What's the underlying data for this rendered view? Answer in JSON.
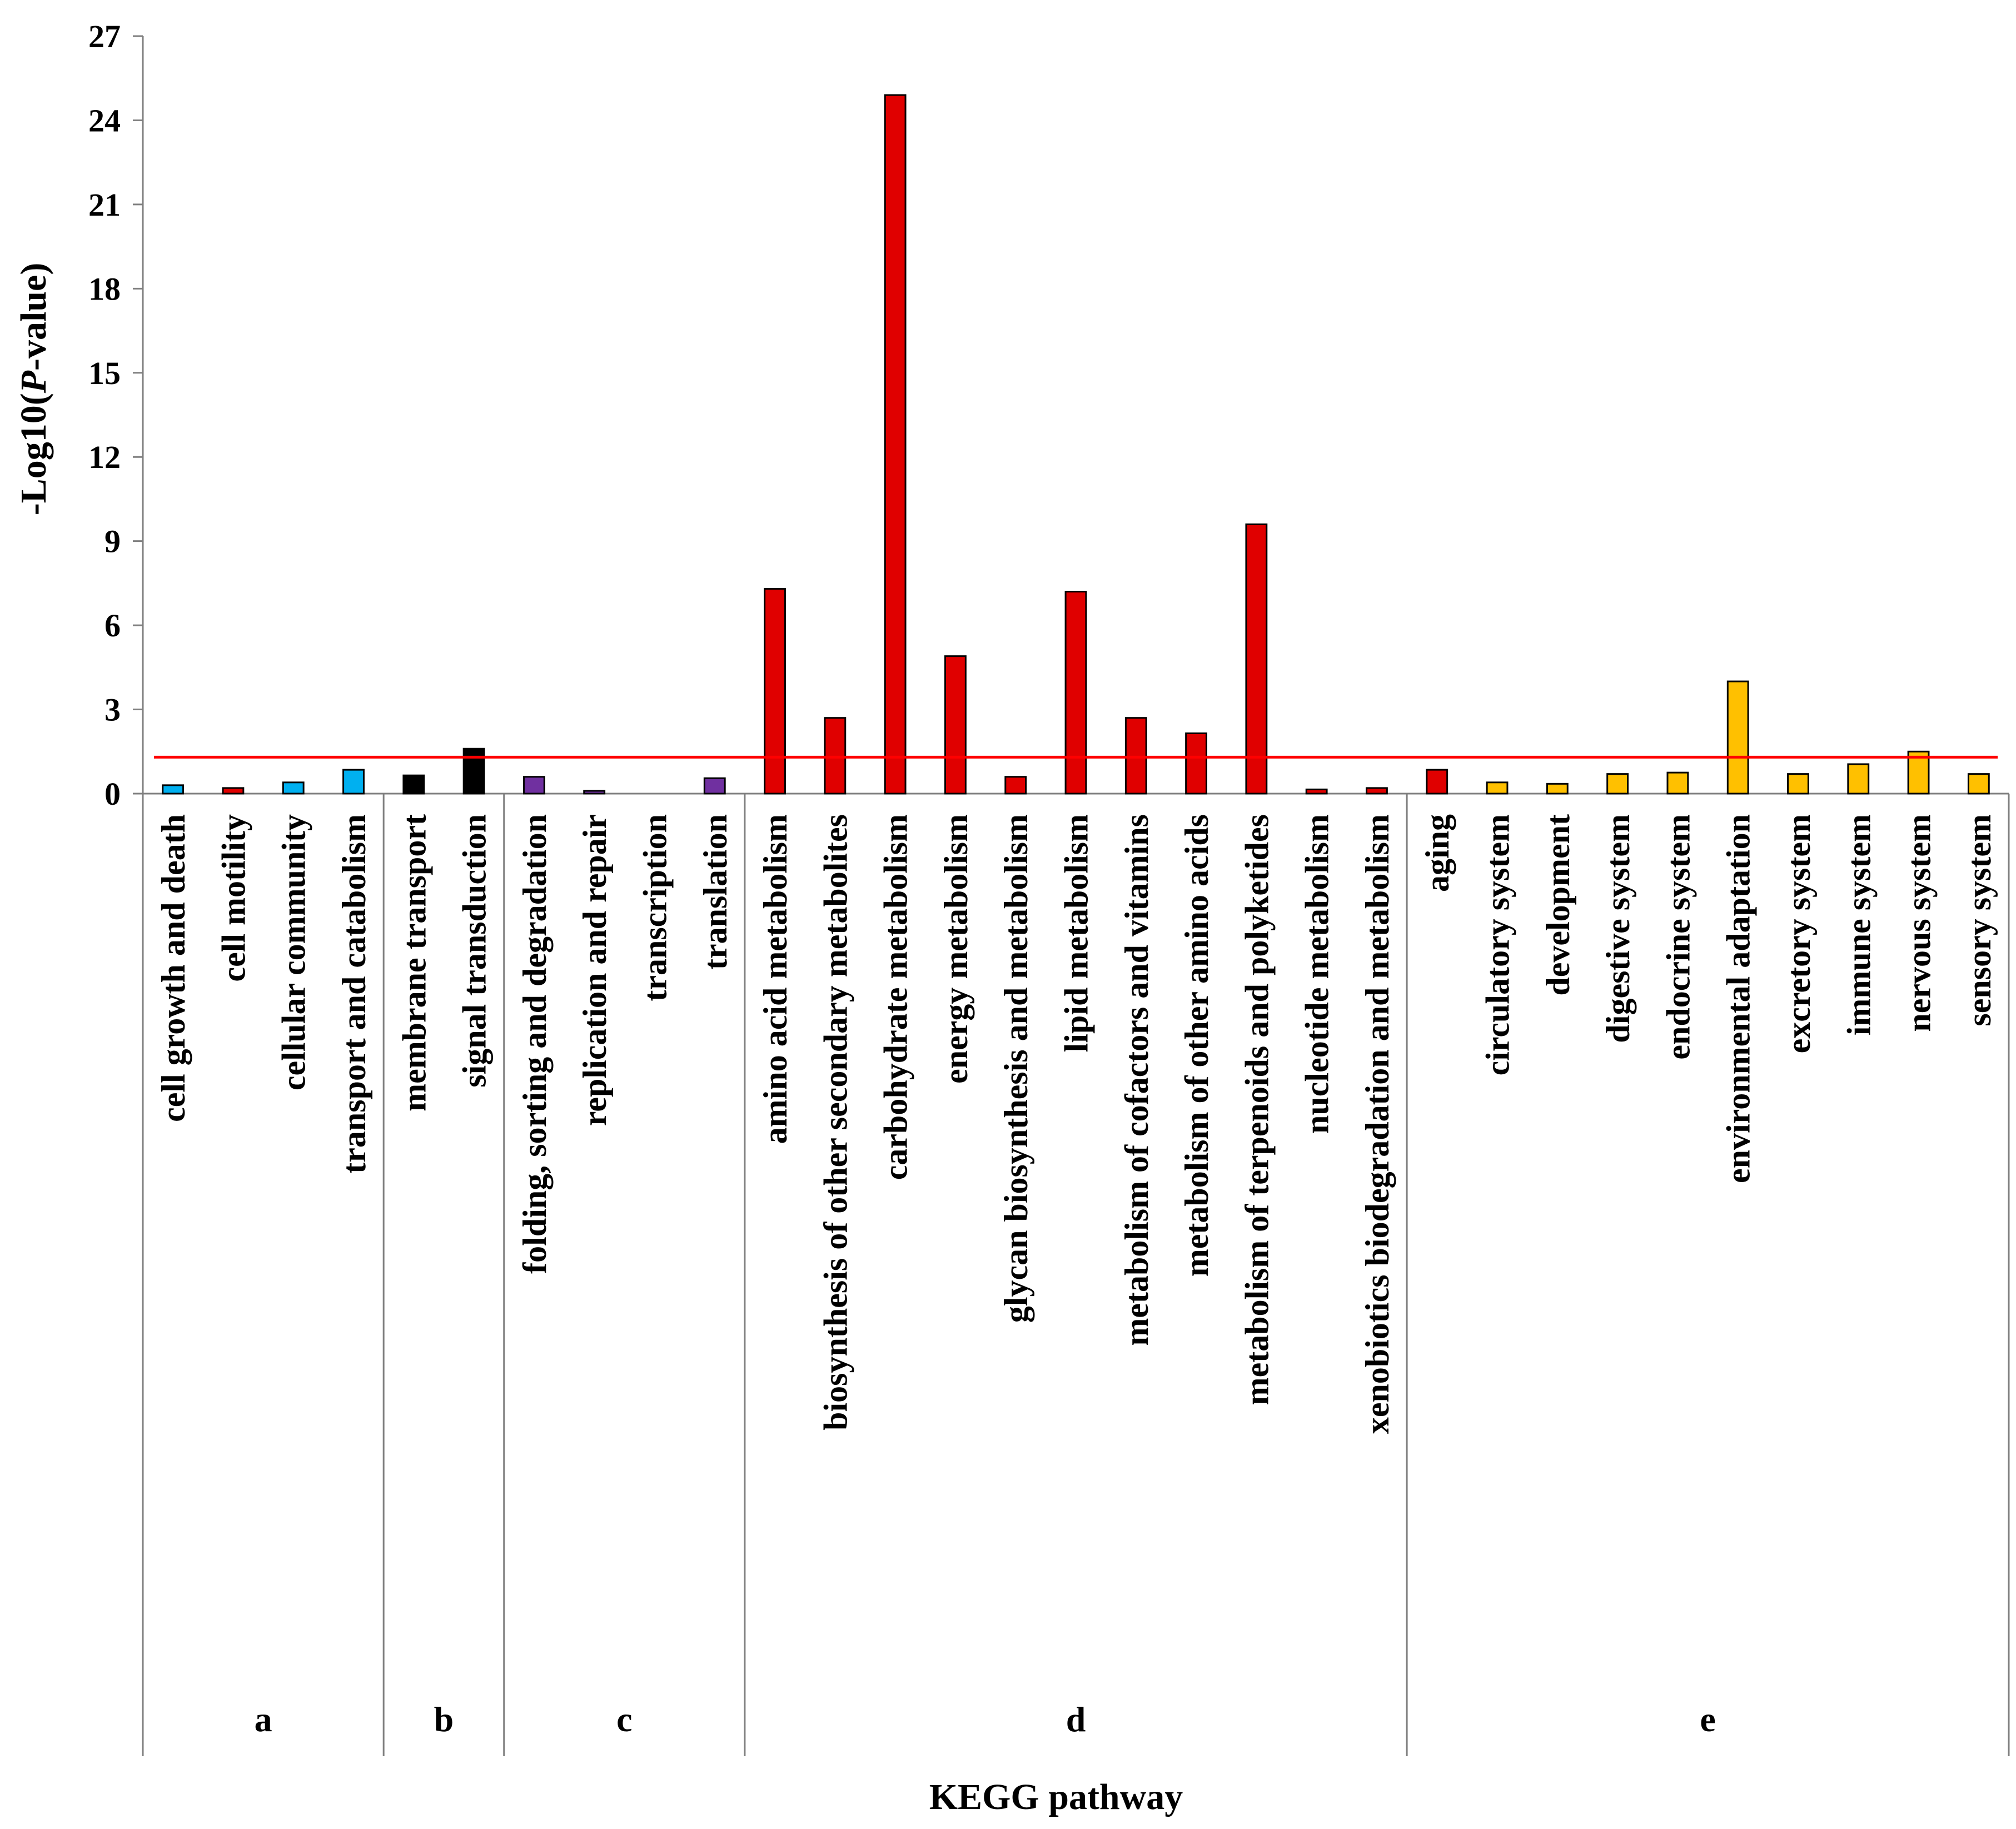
{
  "chart_data": {
    "type": "bar",
    "title": "",
    "xlabel": "KEGG pathway",
    "ylabel_prefix": "-Log10(",
    "ylabel_italic": "P",
    "ylabel_suffix": "-value)",
    "ylim": [
      0,
      27
    ],
    "yticks": [
      0,
      3,
      6,
      9,
      12,
      15,
      18,
      21,
      24,
      27
    ],
    "ytick_labels": [
      "0",
      "3",
      "6",
      "9",
      "12",
      "15",
      "18",
      "21",
      "24",
      "27"
    ],
    "threshold": 1.3,
    "threshold_color": "#ff0000",
    "groups": [
      {
        "label": "a",
        "color": "#00b0f0",
        "categories": [
          "cell growth and death",
          "cell motility",
          "cellular community",
          "transport and catabolism"
        ],
        "values": [
          0.3,
          0.2,
          0.4,
          0.85
        ],
        "bar_colors": [
          "#00b0f0",
          "#e00000",
          "#00b0f0",
          "#00b0f0"
        ]
      },
      {
        "label": "b",
        "color": "#000000",
        "categories": [
          "membrane transport",
          "signal transduction"
        ],
        "values": [
          0.65,
          1.6
        ],
        "bar_colors": [
          "#000000",
          "#000000"
        ]
      },
      {
        "label": "c",
        "color": "#7030a0",
        "categories": [
          "folding, sorting and degradation",
          "replication and repair",
          "transcription",
          "translation"
        ],
        "values": [
          0.6,
          0.1,
          0.0,
          0.55
        ],
        "bar_colors": [
          "#7030a0",
          "#7030a0",
          "#7030a0",
          "#7030a0"
        ]
      },
      {
        "label": "d",
        "color": "#e00000",
        "categories": [
          "amino acid metabolism",
          "biosynthesis of other secondary metabolites",
          "carbohydrate metabolism",
          "energy metabolism",
          "glycan biosynthesis and metabolism",
          "lipid metabolism",
          "metabolism of cofactors and vitamins",
          "metabolism of other amino acids",
          "metabolism of terpenoids and polyketides",
          "nucleotide metabolism",
          "xenobiotics biodegradation and metabolism"
        ],
        "values": [
          7.3,
          2.7,
          24.9,
          4.9,
          0.6,
          7.2,
          2.7,
          2.15,
          9.6,
          0.15,
          0.2
        ],
        "bar_colors": [
          "#e00000",
          "#e00000",
          "#e00000",
          "#e00000",
          "#e00000",
          "#e00000",
          "#e00000",
          "#e00000",
          "#e00000",
          "#e00000",
          "#e00000"
        ]
      },
      {
        "label": "e",
        "color": "#ffc000",
        "categories": [
          "aging",
          "circulatory system",
          "development",
          "digestive system",
          "endocrine system",
          "environmental adaptation",
          "excretory system",
          "immune system",
          "nervous system",
          "sensory system"
        ],
        "values": [
          0.85,
          0.4,
          0.35,
          0.7,
          0.75,
          4.0,
          0.7,
          1.05,
          1.5,
          0.7
        ],
        "bar_colors": [
          "#e00000",
          "#ffc000",
          "#ffc000",
          "#ffc000",
          "#ffc000",
          "#ffc000",
          "#ffc000",
          "#ffc000",
          "#ffc000",
          "#ffc000"
        ]
      }
    ]
  }
}
